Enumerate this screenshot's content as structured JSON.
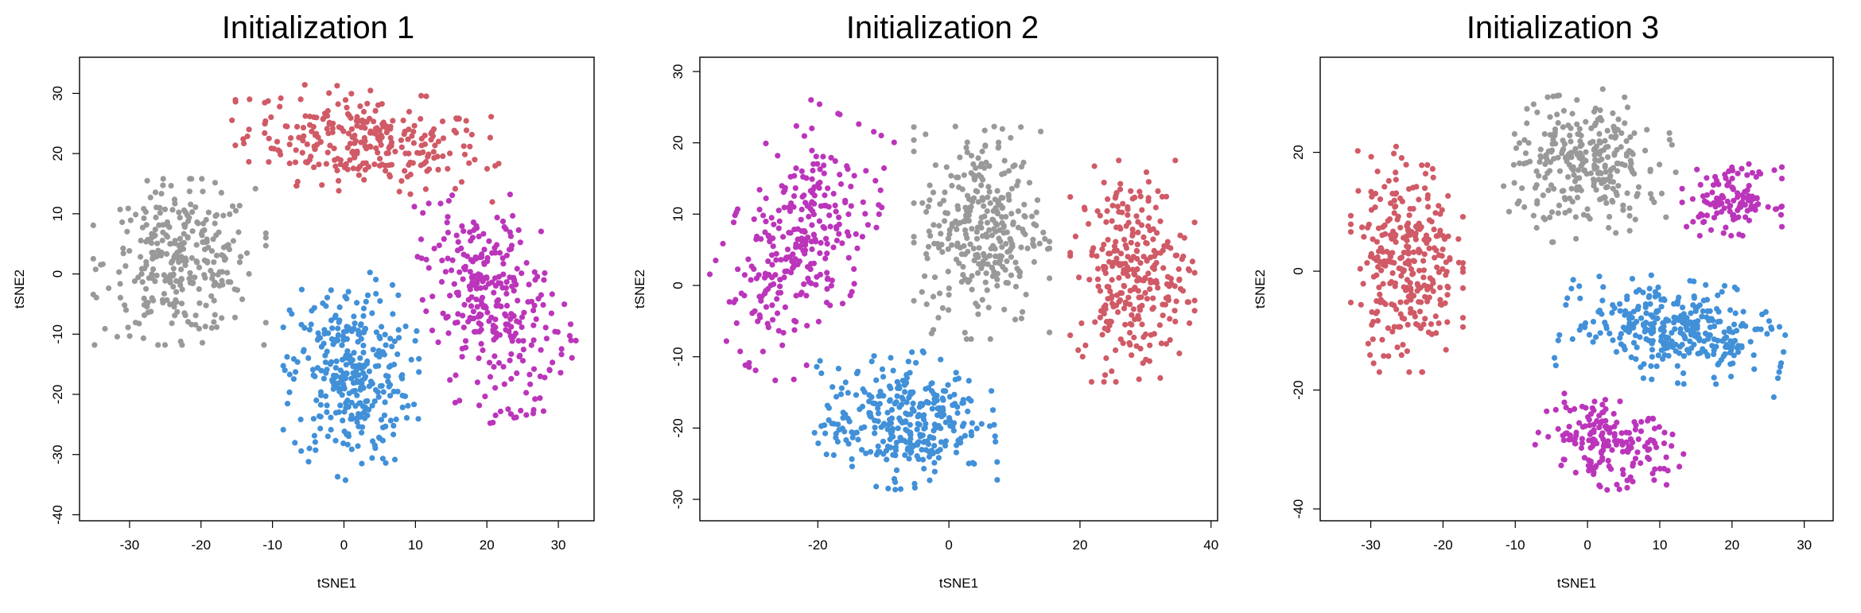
{
  "colors": {
    "red": "#d05a66",
    "gray": "#999999",
    "blue": "#4190d8",
    "magenta": "#bb35bb"
  },
  "chart_data": [
    {
      "type": "scatter",
      "title": "Initialization 1",
      "xlabel": "tSNE1",
      "ylabel": "tSNE2",
      "xlim": [
        -37,
        35
      ],
      "ylim": [
        -41,
        36
      ],
      "xticks": [
        -30,
        -20,
        -10,
        0,
        10,
        20,
        30
      ],
      "yticks": [
        -40,
        -30,
        -20,
        -10,
        0,
        10,
        20,
        30
      ],
      "grid": false,
      "legend": "none",
      "clusters": [
        {
          "color": "red",
          "cx": 3,
          "cy": 22,
          "sx": 11,
          "sy": 5,
          "n": 280,
          "rot": -8
        },
        {
          "color": "gray",
          "cx": -23,
          "cy": 2,
          "sx": 7,
          "sy": 8,
          "n": 300,
          "rot": 0
        },
        {
          "color": "blue",
          "cx": 1,
          "cy": -17,
          "sx": 5.5,
          "sy": 10,
          "n": 330,
          "rot": 0
        },
        {
          "color": "magenta",
          "cx": 21,
          "cy": -5,
          "sx": 5.5,
          "sy": 11,
          "n": 300,
          "rot": 15
        }
      ]
    },
    {
      "type": "scatter",
      "title": "Initialization 2",
      "xlabel": "tSNE1",
      "ylabel": "tSNE2",
      "xlim": [
        -38,
        41
      ],
      "ylim": [
        -33,
        32
      ],
      "xticks": [
        -20,
        0,
        20,
        40
      ],
      "yticks": [
        -30,
        -20,
        -10,
        0,
        10,
        20,
        30
      ],
      "grid": false,
      "legend": "none",
      "clusters": [
        {
          "color": "magenta",
          "cx": -23,
          "cy": 6,
          "sx": 6,
          "sy": 11,
          "n": 290,
          "rot": -25
        },
        {
          "color": "gray",
          "cx": 5,
          "cy": 8,
          "sx": 6,
          "sy": 9,
          "n": 320,
          "rot": 0
        },
        {
          "color": "red",
          "cx": 28,
          "cy": 2,
          "sx": 5.5,
          "sy": 9,
          "n": 290,
          "rot": 0
        },
        {
          "color": "blue",
          "cx": -7,
          "cy": -19,
          "sx": 8,
          "sy": 5.5,
          "n": 330,
          "rot": 5
        }
      ]
    },
    {
      "type": "scatter",
      "title": "Initialization 3",
      "xlabel": "tSNE1",
      "ylabel": "tSNE2",
      "xlim": [
        -37,
        34
      ],
      "ylim": [
        -42,
        36
      ],
      "xticks": [
        -30,
        -20,
        -10,
        0,
        10,
        20,
        30
      ],
      "yticks": [
        -40,
        -20,
        0,
        20
      ],
      "grid": false,
      "legend": "none",
      "clusters": [
        {
          "color": "red",
          "cx": -25,
          "cy": 2,
          "sx": 4.5,
          "sy": 11,
          "n": 300,
          "rot": 0
        },
        {
          "color": "gray",
          "cx": 0,
          "cy": 18,
          "sx": 7,
          "sy": 7,
          "n": 290,
          "rot": 10
        },
        {
          "color": "magenta",
          "cx": 20,
          "cy": 12,
          "sx": 4,
          "sy": 3.5,
          "n": 120,
          "rot": 0
        },
        {
          "color": "blue",
          "cx": 12,
          "cy": -10,
          "sx": 9,
          "sy": 5,
          "n": 330,
          "rot": -10
        },
        {
          "color": "magenta",
          "cx": 3,
          "cy": -29,
          "sx": 6,
          "sy": 4,
          "n": 180,
          "rot": -30
        }
      ]
    }
  ]
}
